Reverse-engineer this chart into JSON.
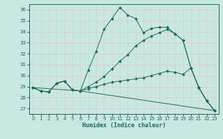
{
  "xlabel": "Humidex (Indice chaleur)",
  "xlim": [
    -0.5,
    23.5
  ],
  "ylim": [
    26.5,
    36.5
  ],
  "yticks": [
    27,
    28,
    29,
    30,
    31,
    32,
    33,
    34,
    35,
    36
  ],
  "xticks": [
    0,
    1,
    2,
    3,
    4,
    5,
    6,
    7,
    8,
    9,
    10,
    11,
    12,
    13,
    14,
    15,
    16,
    17,
    18,
    19,
    20,
    21,
    22,
    23
  ],
  "background_color": "#c8e8e4",
  "line_color": "#1a6b58",
  "grid_color": "#e8c8c8",
  "line1_x": [
    0,
    1,
    2,
    3,
    4,
    5,
    6,
    7,
    8,
    9,
    10,
    11,
    12,
    13,
    14,
    15,
    16,
    17,
    18,
    19,
    20,
    21,
    22,
    23
  ],
  "line1_y": [
    28.9,
    28.6,
    28.5,
    29.3,
    29.5,
    28.7,
    28.6,
    30.5,
    32.2,
    34.2,
    35.2,
    36.2,
    35.5,
    35.2,
    33.9,
    34.3,
    34.4,
    34.4,
    33.8,
    33.2,
    30.7,
    28.9,
    27.7,
    26.8
  ],
  "line2_x": [
    0,
    1,
    2,
    3,
    4,
    5,
    6,
    7,
    8,
    9,
    10,
    11,
    12,
    13,
    14,
    15,
    16,
    17,
    18,
    19,
    20,
    21,
    22,
    23
  ],
  "line2_y": [
    28.9,
    28.6,
    28.5,
    29.3,
    29.5,
    28.7,
    28.6,
    29.0,
    29.4,
    29.9,
    30.6,
    31.3,
    31.9,
    32.7,
    33.2,
    33.6,
    33.9,
    34.2,
    33.8,
    33.2,
    30.7,
    28.9,
    27.7,
    26.8
  ],
  "line3_x": [
    0,
    1,
    2,
    3,
    4,
    5,
    6,
    7,
    8,
    9,
    10,
    11,
    12,
    13,
    14,
    15,
    16,
    17,
    18,
    19,
    20,
    21,
    22,
    23
  ],
  "line3_y": [
    28.9,
    28.6,
    28.5,
    29.3,
    29.5,
    28.7,
    28.6,
    28.8,
    29.0,
    29.2,
    29.4,
    29.5,
    29.6,
    29.7,
    29.8,
    30.0,
    30.2,
    30.4,
    30.3,
    30.1,
    30.7,
    28.9,
    27.7,
    26.8
  ],
  "line4_x": [
    0,
    6,
    23
  ],
  "line4_y": [
    28.9,
    28.6,
    26.8
  ]
}
